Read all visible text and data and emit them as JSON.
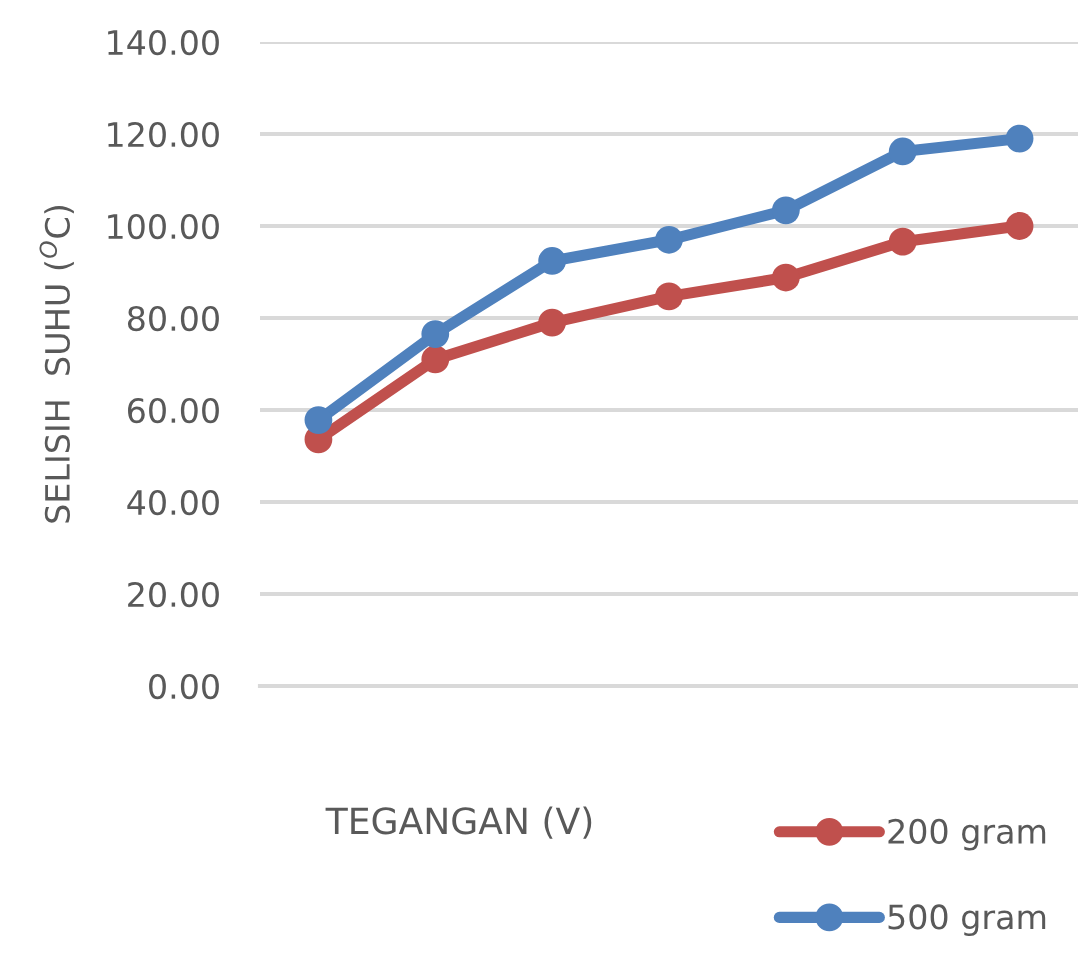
{
  "chart_data": {
    "type": "line",
    "xlabel": "TEGANGAN (V)",
    "ylabel": "SELISIH  SUHU ($^{O}$C)",
    "categories": [
      null,
      null,
      null,
      null,
      null,
      null,
      null
    ],
    "series": [
      {
        "name": "200 gram",
        "color": "#c0504d",
        "values": [
          53.6,
          71,
          79,
          84.7,
          88.8,
          96.6,
          100
        ]
      },
      {
        "name": "500 gram",
        "color": "#4f81bd",
        "values": [
          57.8,
          76.5,
          92.4,
          97,
          103.4,
          116.2,
          119
        ]
      }
    ],
    "ylim": [
      0,
      140
    ],
    "yticks": [
      {
        "value": 0,
        "label": "0.00"
      },
      {
        "value": 20,
        "label": "20.00"
      },
      {
        "value": 40,
        "label": "40.00"
      },
      {
        "value": 60,
        "label": "60.00"
      },
      {
        "value": 80,
        "label": "80.00"
      },
      {
        "value": 100,
        "label": "100.00"
      },
      {
        "value": 120,
        "label": "120.00"
      },
      {
        "value": 140,
        "label": "140.00"
      }
    ],
    "grid": "y",
    "legend": "bottom right",
    "marker": "circle",
    "line_style": "solid"
  }
}
